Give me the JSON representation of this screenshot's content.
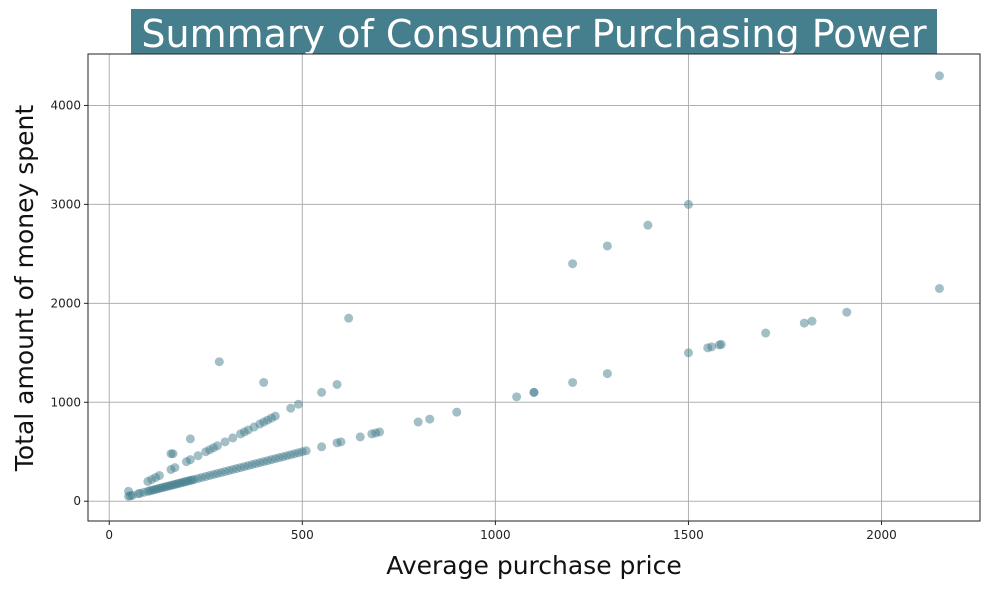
{
  "chart_data": {
    "type": "scatter",
    "title": "Summary of Consumer Purchasing Power",
    "xlabel": "Average purchase price",
    "ylabel": "Total amount of money spent",
    "xlim": [
      -55,
      2255
    ],
    "ylim": [
      -200,
      4520
    ],
    "xticks": [
      0,
      500,
      1000,
      1500,
      2000
    ],
    "yticks": [
      0,
      1000,
      2000,
      3000,
      4000
    ],
    "grid": true,
    "colors": {
      "point": "#457f8d",
      "title_bg": "#457f8d",
      "grid": "#b0b0b0"
    },
    "point_opacity": 0.5,
    "points": [
      [
        50,
        50
      ],
      [
        50,
        100
      ],
      [
        55,
        55
      ],
      [
        60,
        60
      ],
      [
        75,
        75
      ],
      [
        80,
        80
      ],
      [
        90,
        90
      ],
      [
        100,
        100
      ],
      [
        105,
        105
      ],
      [
        110,
        110
      ],
      [
        115,
        115
      ],
      [
        120,
        120
      ],
      [
        125,
        125
      ],
      [
        130,
        130
      ],
      [
        135,
        135
      ],
      [
        140,
        140
      ],
      [
        145,
        145
      ],
      [
        150,
        150
      ],
      [
        155,
        155
      ],
      [
        160,
        160
      ],
      [
        165,
        165
      ],
      [
        170,
        170
      ],
      [
        175,
        175
      ],
      [
        180,
        180
      ],
      [
        185,
        185
      ],
      [
        190,
        190
      ],
      [
        195,
        195
      ],
      [
        200,
        200
      ],
      [
        205,
        205
      ],
      [
        210,
        210
      ],
      [
        215,
        215
      ],
      [
        220,
        220
      ],
      [
        230,
        230
      ],
      [
        240,
        240
      ],
      [
        250,
        250
      ],
      [
        260,
        260
      ],
      [
        270,
        270
      ],
      [
        280,
        280
      ],
      [
        290,
        290
      ],
      [
        300,
        300
      ],
      [
        310,
        310
      ],
      [
        320,
        320
      ],
      [
        330,
        330
      ],
      [
        340,
        340
      ],
      [
        350,
        350
      ],
      [
        360,
        360
      ],
      [
        370,
        370
      ],
      [
        380,
        380
      ],
      [
        390,
        390
      ],
      [
        400,
        400
      ],
      [
        410,
        410
      ],
      [
        420,
        420
      ],
      [
        430,
        430
      ],
      [
        440,
        440
      ],
      [
        450,
        450
      ],
      [
        460,
        460
      ],
      [
        470,
        470
      ],
      [
        480,
        480
      ],
      [
        490,
        490
      ],
      [
        500,
        500
      ],
      [
        510,
        510
      ],
      [
        550,
        550
      ],
      [
        590,
        590
      ],
      [
        600,
        600
      ],
      [
        680,
        680
      ],
      [
        690,
        690
      ],
      [
        700,
        700
      ],
      [
        800,
        800
      ],
      [
        830,
        830
      ],
      [
        900,
        900
      ],
      [
        1055,
        1055
      ],
      [
        1100,
        1100
      ],
      [
        1200,
        1200
      ],
      [
        1290,
        1290
      ],
      [
        1500,
        1500
      ],
      [
        1550,
        1550
      ],
      [
        1560,
        1560
      ],
      [
        1580,
        1580
      ],
      [
        1585,
        1585
      ],
      [
        1700,
        1700
      ],
      [
        1800,
        1800
      ],
      [
        1820,
        1820
      ],
      [
        1910,
        1910
      ],
      [
        2150,
        2150
      ],
      [
        100,
        200
      ],
      [
        110,
        220
      ],
      [
        120,
        240
      ],
      [
        130,
        260
      ],
      [
        160,
        320
      ],
      [
        170,
        340
      ],
      [
        200,
        400
      ],
      [
        210,
        420
      ],
      [
        230,
        460
      ],
      [
        250,
        500
      ],
      [
        260,
        520
      ],
      [
        270,
        540
      ],
      [
        280,
        560
      ],
      [
        300,
        600
      ],
      [
        320,
        640
      ],
      [
        340,
        680
      ],
      [
        350,
        700
      ],
      [
        360,
        720
      ],
      [
        375,
        750
      ],
      [
        390,
        780
      ],
      [
        400,
        800
      ],
      [
        410,
        820
      ],
      [
        420,
        840
      ],
      [
        430,
        860
      ],
      [
        550,
        1100
      ],
      [
        1200,
        2400
      ],
      [
        1290,
        2580
      ],
      [
        1395,
        2790
      ],
      [
        1500,
        3000
      ],
      [
        2150,
        4300
      ],
      [
        160,
        480
      ],
      [
        165,
        480
      ],
      [
        210,
        630
      ],
      [
        285,
        1410
      ],
      [
        400,
        1200
      ],
      [
        470,
        940
      ],
      [
        490,
        980
      ],
      [
        590,
        1180
      ],
      [
        620,
        1850
      ],
      [
        650,
        650
      ],
      [
        1100,
        1100
      ]
    ]
  }
}
